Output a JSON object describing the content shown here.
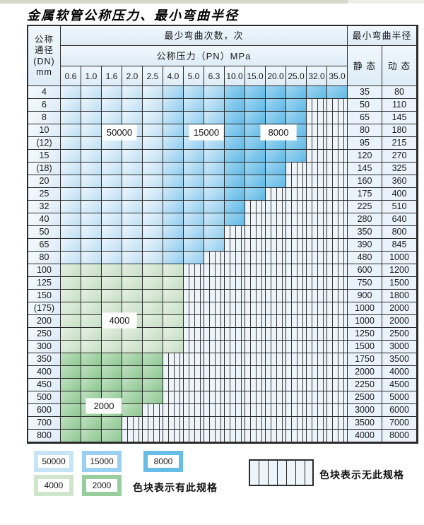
{
  "title": "金属软管公称压力、最小弯曲半径",
  "table": {
    "dn_header_lines": [
      "公称",
      "通径",
      "(DN)",
      "mm"
    ],
    "bend_times_header": "最少弯曲次数，次",
    "pressure_header": "公称压力（PN）MPa",
    "radius_header": "最小弯曲半径",
    "static_header": "静 态",
    "dynamic_header": "动 态",
    "pressure_columns": [
      "0.6",
      "1.0",
      "1.6",
      "2.0",
      "2.5",
      "4.0",
      "5.0",
      "6.3",
      "10.0",
      "15.0",
      "20.0",
      "25.0",
      "32.0",
      "35.0"
    ],
    "zone_values": {
      "blue_light": "50000",
      "blue_medium": "15000",
      "blue_dark": "8000",
      "green_light": "4000",
      "green_medium": "2000"
    },
    "rows": [
      {
        "dn": "4",
        "last": 13,
        "palette": "blue",
        "static": "35",
        "dynamic": "80"
      },
      {
        "dn": "6",
        "last": 11,
        "palette": "blue",
        "static": "50",
        "dynamic": "110"
      },
      {
        "dn": "8",
        "last": 11,
        "palette": "blue",
        "static": "65",
        "dynamic": "145"
      },
      {
        "dn": "10",
        "last": 11,
        "palette": "blue",
        "static": "80",
        "dynamic": "180"
      },
      {
        "dn": "(12)",
        "last": 11,
        "palette": "blue",
        "static": "95",
        "dynamic": "215"
      },
      {
        "dn": "15",
        "last": 11,
        "palette": "blue",
        "static": "120",
        "dynamic": "270"
      },
      {
        "dn": "(18)",
        "last": 10,
        "palette": "blue",
        "static": "145",
        "dynamic": "325"
      },
      {
        "dn": "20",
        "last": 10,
        "palette": "blue",
        "static": "160",
        "dynamic": "360"
      },
      {
        "dn": "25",
        "last": 9,
        "palette": "blue",
        "static": "175",
        "dynamic": "400"
      },
      {
        "dn": "32",
        "last": 8,
        "palette": "blue",
        "static": "225",
        "dynamic": "510"
      },
      {
        "dn": "40",
        "last": 8,
        "palette": "blue",
        "static": "280",
        "dynamic": "640"
      },
      {
        "dn": "50",
        "last": 7,
        "palette": "blue",
        "static": "350",
        "dynamic": "800"
      },
      {
        "dn": "65",
        "last": 7,
        "palette": "blue",
        "static": "390",
        "dynamic": "845"
      },
      {
        "dn": "80",
        "last": 6,
        "palette": "blue",
        "static": "480",
        "dynamic": "1000"
      },
      {
        "dn": "100",
        "last": 5,
        "palette": "c4000",
        "static": "600",
        "dynamic": "1200"
      },
      {
        "dn": "125",
        "last": 5,
        "palette": "c4000",
        "static": "750",
        "dynamic": "1500"
      },
      {
        "dn": "150",
        "last": 5,
        "palette": "c4000",
        "static": "900",
        "dynamic": "1800"
      },
      {
        "dn": "(175)",
        "last": 5,
        "palette": "c4000",
        "static": "1000",
        "dynamic": "2000"
      },
      {
        "dn": "200",
        "last": 5,
        "palette": "c4000",
        "static": "1000",
        "dynamic": "2000"
      },
      {
        "dn": "250",
        "last": 5,
        "palette": "c4000",
        "static": "1250",
        "dynamic": "2500"
      },
      {
        "dn": "300",
        "last": 5,
        "palette": "c4000",
        "static": "1500",
        "dynamic": "3000"
      },
      {
        "dn": "350",
        "last": 4,
        "palette": "c2000",
        "static": "1750",
        "dynamic": "3500"
      },
      {
        "dn": "400",
        "last": 4,
        "palette": "c2000",
        "static": "2000",
        "dynamic": "4000"
      },
      {
        "dn": "450",
        "last": 4,
        "palette": "c2000",
        "static": "2250",
        "dynamic": "4500"
      },
      {
        "dn": "500",
        "last": 4,
        "palette": "c2000",
        "static": "2500",
        "dynamic": "5000"
      },
      {
        "dn": "600",
        "last": 3,
        "palette": "c2000",
        "static": "3000",
        "dynamic": "6000"
      },
      {
        "dn": "700",
        "last": 2,
        "palette": "c2000",
        "static": "3500",
        "dynamic": "7000"
      },
      {
        "dn": "800",
        "last": 2,
        "palette": "c2000",
        "static": "4000",
        "dynamic": "8000"
      }
    ]
  },
  "overlay_labels": [
    {
      "id": "label-50000",
      "text": "50000"
    },
    {
      "id": "label-15000",
      "text": "15000"
    },
    {
      "id": "label-8000",
      "text": "8000"
    },
    {
      "id": "label-4000",
      "text": "4000"
    },
    {
      "id": "label-2000",
      "text": "2000"
    }
  ],
  "legend": {
    "items": [
      {
        "text": "50000",
        "palette": "c50000"
      },
      {
        "text": "15000",
        "palette": "c15000"
      },
      {
        "text": "8000",
        "palette": "c8000"
      },
      {
        "text": "4000",
        "palette": "c4000"
      },
      {
        "text": "2000",
        "palette": "c2000"
      }
    ],
    "has_note": "色块表示有此规格",
    "none_note": "色块表示无此规格"
  },
  "colors": {
    "blue_50000": "#c7e4f6",
    "blue_15000": "#9bd1f0",
    "blue_8000": "#68bde8",
    "green_4000": "#cfe6cd",
    "green_2000": "#98cd9d",
    "grid_border": "#2b2b2b",
    "header_bg": "#ddecf7",
    "value_cell_bg": "#eaf3fb"
  }
}
